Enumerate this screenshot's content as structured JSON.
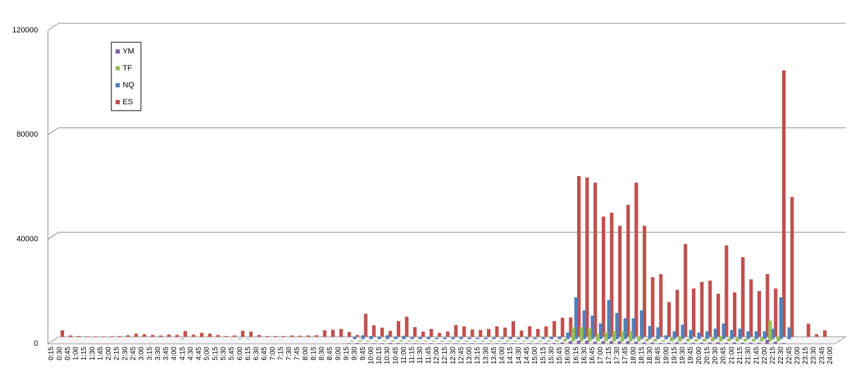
{
  "chart_data": {
    "type": "bar3d",
    "categories": [
      "0:15",
      "0:30",
      "0:45",
      "1:00",
      "1:15",
      "1:30",
      "1:45",
      "2:00",
      "2:15",
      "2:30",
      "2:45",
      "3:00",
      "3:15",
      "3:30",
      "3:45",
      "4:00",
      "4:15",
      "4:30",
      "4:45",
      "5:00",
      "5:15",
      "5:30",
      "5:45",
      "6:00",
      "6:15",
      "6:30",
      "6:45",
      "7:00",
      "7:15",
      "7:30",
      "7:45",
      "8:00",
      "8:15",
      "8:30",
      "8:45",
      "9:00",
      "9:15",
      "9:30",
      "9:45",
      "10:00",
      "10:15",
      "10:30",
      "10:45",
      "11:00",
      "11:15",
      "11:30",
      "11:45",
      "12:00",
      "12:15",
      "12:30",
      "12:45",
      "13:00",
      "13:15",
      "13:30",
      "13:45",
      "14:00",
      "14:15",
      "14:30",
      "14:45",
      "15:00",
      "15:15",
      "15:30",
      "15:45",
      "16:00",
      "16:15",
      "16:30",
      "16:45",
      "17:00",
      "17:15",
      "17:30",
      "17:45",
      "18:00",
      "18:15",
      "18:30",
      "18:45",
      "19:00",
      "19:15",
      "19:30",
      "19:45",
      "20:00",
      "20:15",
      "20:30",
      "20:45",
      "21:00",
      "21:15",
      "21:30",
      "21:45",
      "22:00",
      "22:15",
      "22:30",
      "22:45",
      "23:00",
      "23:15",
      "23:30",
      "23:45",
      "24:00"
    ],
    "series": [
      {
        "name": "YM",
        "color": "#8064a2",
        "values": [
          0,
          0,
          0,
          0,
          0,
          0,
          0,
          0,
          0,
          0,
          0,
          0,
          0,
          0,
          0,
          0,
          0,
          0,
          0,
          0,
          0,
          0,
          0,
          0,
          0,
          0,
          0,
          0,
          0,
          0,
          0,
          0,
          0,
          0,
          0,
          0,
          200,
          300,
          200,
          200,
          200,
          300,
          300,
          200,
          200,
          200,
          200,
          200,
          200,
          200,
          200,
          200,
          200,
          200,
          200,
          300,
          200,
          200,
          200,
          200,
          300,
          300,
          500,
          1000,
          1200,
          1200,
          800,
          1000,
          1000,
          1000,
          1000,
          800,
          500,
          500,
          300,
          400,
          600,
          400,
          400,
          400,
          500,
          600,
          400,
          500,
          400,
          400,
          400,
          1500,
          800,
          300,
          0,
          0,
          0,
          0,
          0,
          0
        ]
      },
      {
        "name": "TF",
        "color": "#9bbb59",
        "values": [
          0,
          0,
          0,
          0,
          0,
          0,
          0,
          0,
          0,
          0,
          0,
          0,
          0,
          0,
          0,
          0,
          0,
          0,
          0,
          0,
          0,
          0,
          0,
          0,
          0,
          0,
          0,
          0,
          0,
          0,
          0,
          0,
          0,
          0,
          0,
          0,
          300,
          400,
          300,
          300,
          300,
          400,
          400,
          300,
          300,
          300,
          300,
          300,
          300,
          300,
          300,
          300,
          300,
          300,
          300,
          400,
          300,
          300,
          300,
          300,
          400,
          500,
          1000,
          5500,
          5500,
          5000,
          3000,
          3500,
          4000,
          4000,
          4000,
          2000,
          1000,
          1000,
          500,
          1500,
          2000,
          1000,
          800,
          1000,
          1500,
          2000,
          1200,
          1500,
          1000,
          1000,
          1500,
          8000,
          2000,
          0,
          0,
          0,
          0,
          0,
          0,
          0
        ]
      },
      {
        "name": "NQ",
        "color": "#4f81bd",
        "values": [
          0,
          0,
          0,
          0,
          0,
          0,
          0,
          0,
          0,
          0,
          0,
          0,
          0,
          0,
          0,
          200,
          0,
          0,
          0,
          0,
          0,
          0,
          200,
          200,
          0,
          0,
          0,
          0,
          0,
          0,
          0,
          0,
          0,
          0,
          0,
          0,
          1000,
          1500,
          1200,
          1000,
          1500,
          1000,
          1300,
          800,
          800,
          900,
          500,
          600,
          700,
          800,
          600,
          500,
          600,
          700,
          600,
          800,
          600,
          700,
          600,
          700,
          900,
          1000,
          2500,
          16000,
          11000,
          9000,
          6000,
          15000,
          10000,
          8000,
          8000,
          11000,
          5000,
          4500,
          1500,
          3000,
          5500,
          3500,
          2500,
          3000,
          4000,
          6000,
          3500,
          4000,
          3000,
          3000,
          3000,
          4000,
          16000,
          4500,
          0,
          0,
          0,
          0,
          0,
          0
        ]
      },
      {
        "name": "ES",
        "color": "#c0504d",
        "values": [
          2500,
          500,
          300,
          200,
          200,
          200,
          200,
          300,
          600,
          1200,
          1000,
          700,
          500,
          900,
          700,
          2200,
          800,
          1500,
          1200,
          700,
          300,
          500,
          2300,
          2000,
          700,
          300,
          300,
          300,
          500,
          400,
          500,
          600,
          2500,
          2700,
          3000,
          1800,
          700,
          8800,
          4400,
          3500,
          2300,
          6000,
          7700,
          3700,
          2000,
          3000,
          1500,
          2000,
          4500,
          4000,
          2800,
          2600,
          3000,
          4000,
          3500,
          6000,
          2400,
          4000,
          3000,
          4000,
          6000,
          7300,
          7400,
          61500,
          61000,
          59000,
          46000,
          47500,
          42500,
          50500,
          59000,
          42500,
          22800,
          24000,
          13300,
          18000,
          35500,
          18500,
          21000,
          21500,
          16500,
          35000,
          17000,
          30500,
          22000,
          17500,
          24000,
          18500,
          102000,
          53500,
          0,
          5000,
          1000,
          2500,
          0,
          0
        ]
      }
    ],
    "ylim": [
      0,
      120000
    ],
    "yticks": [
      0,
      40000,
      80000,
      120000
    ],
    "grid": true
  }
}
